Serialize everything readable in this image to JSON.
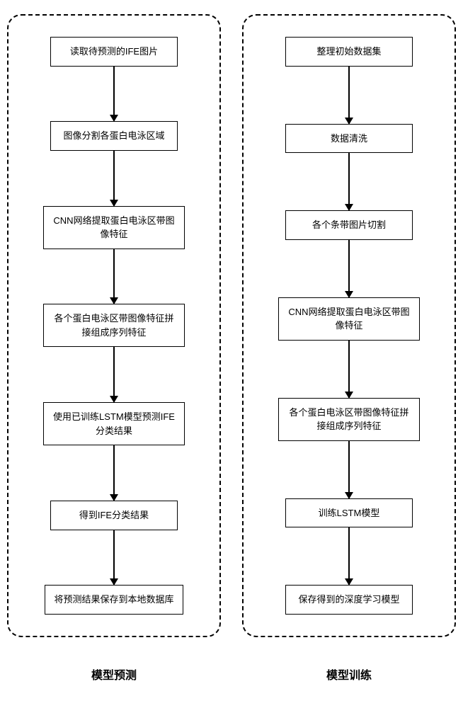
{
  "flowchart": {
    "type": "flowchart",
    "background_color": "#ffffff",
    "border_color": "#000000",
    "node_border": "1px solid #000000",
    "panel_border": "2px dashed #000000",
    "panel_radius": 20,
    "arrow_color": "#000000",
    "font_size": 13,
    "label_font_size": 16,
    "left": {
      "label": "模型预测",
      "nodes": [
        "读取待预测的IFE图片",
        "图像分割各蛋白电泳区域",
        "CNN网络提取蛋白电泳区带图像特征",
        "各个蛋白电泳区带图像特征拼接组成序列特征",
        "使用已训练LSTM模型预测IFE分类结果",
        "得到IFE分类结果",
        "将预测结果保存到本地数据库"
      ]
    },
    "right": {
      "label": "模型训练",
      "nodes": [
        "整理初始数据集",
        "数据清洗",
        "各个条带图片切割",
        "CNN网络提取蛋白电泳区带图像特征",
        "各个蛋白电泳区带图像特征拼接组成序列特征",
        "训练LSTM模型",
        "保存得到的深度学习模型"
      ]
    }
  }
}
